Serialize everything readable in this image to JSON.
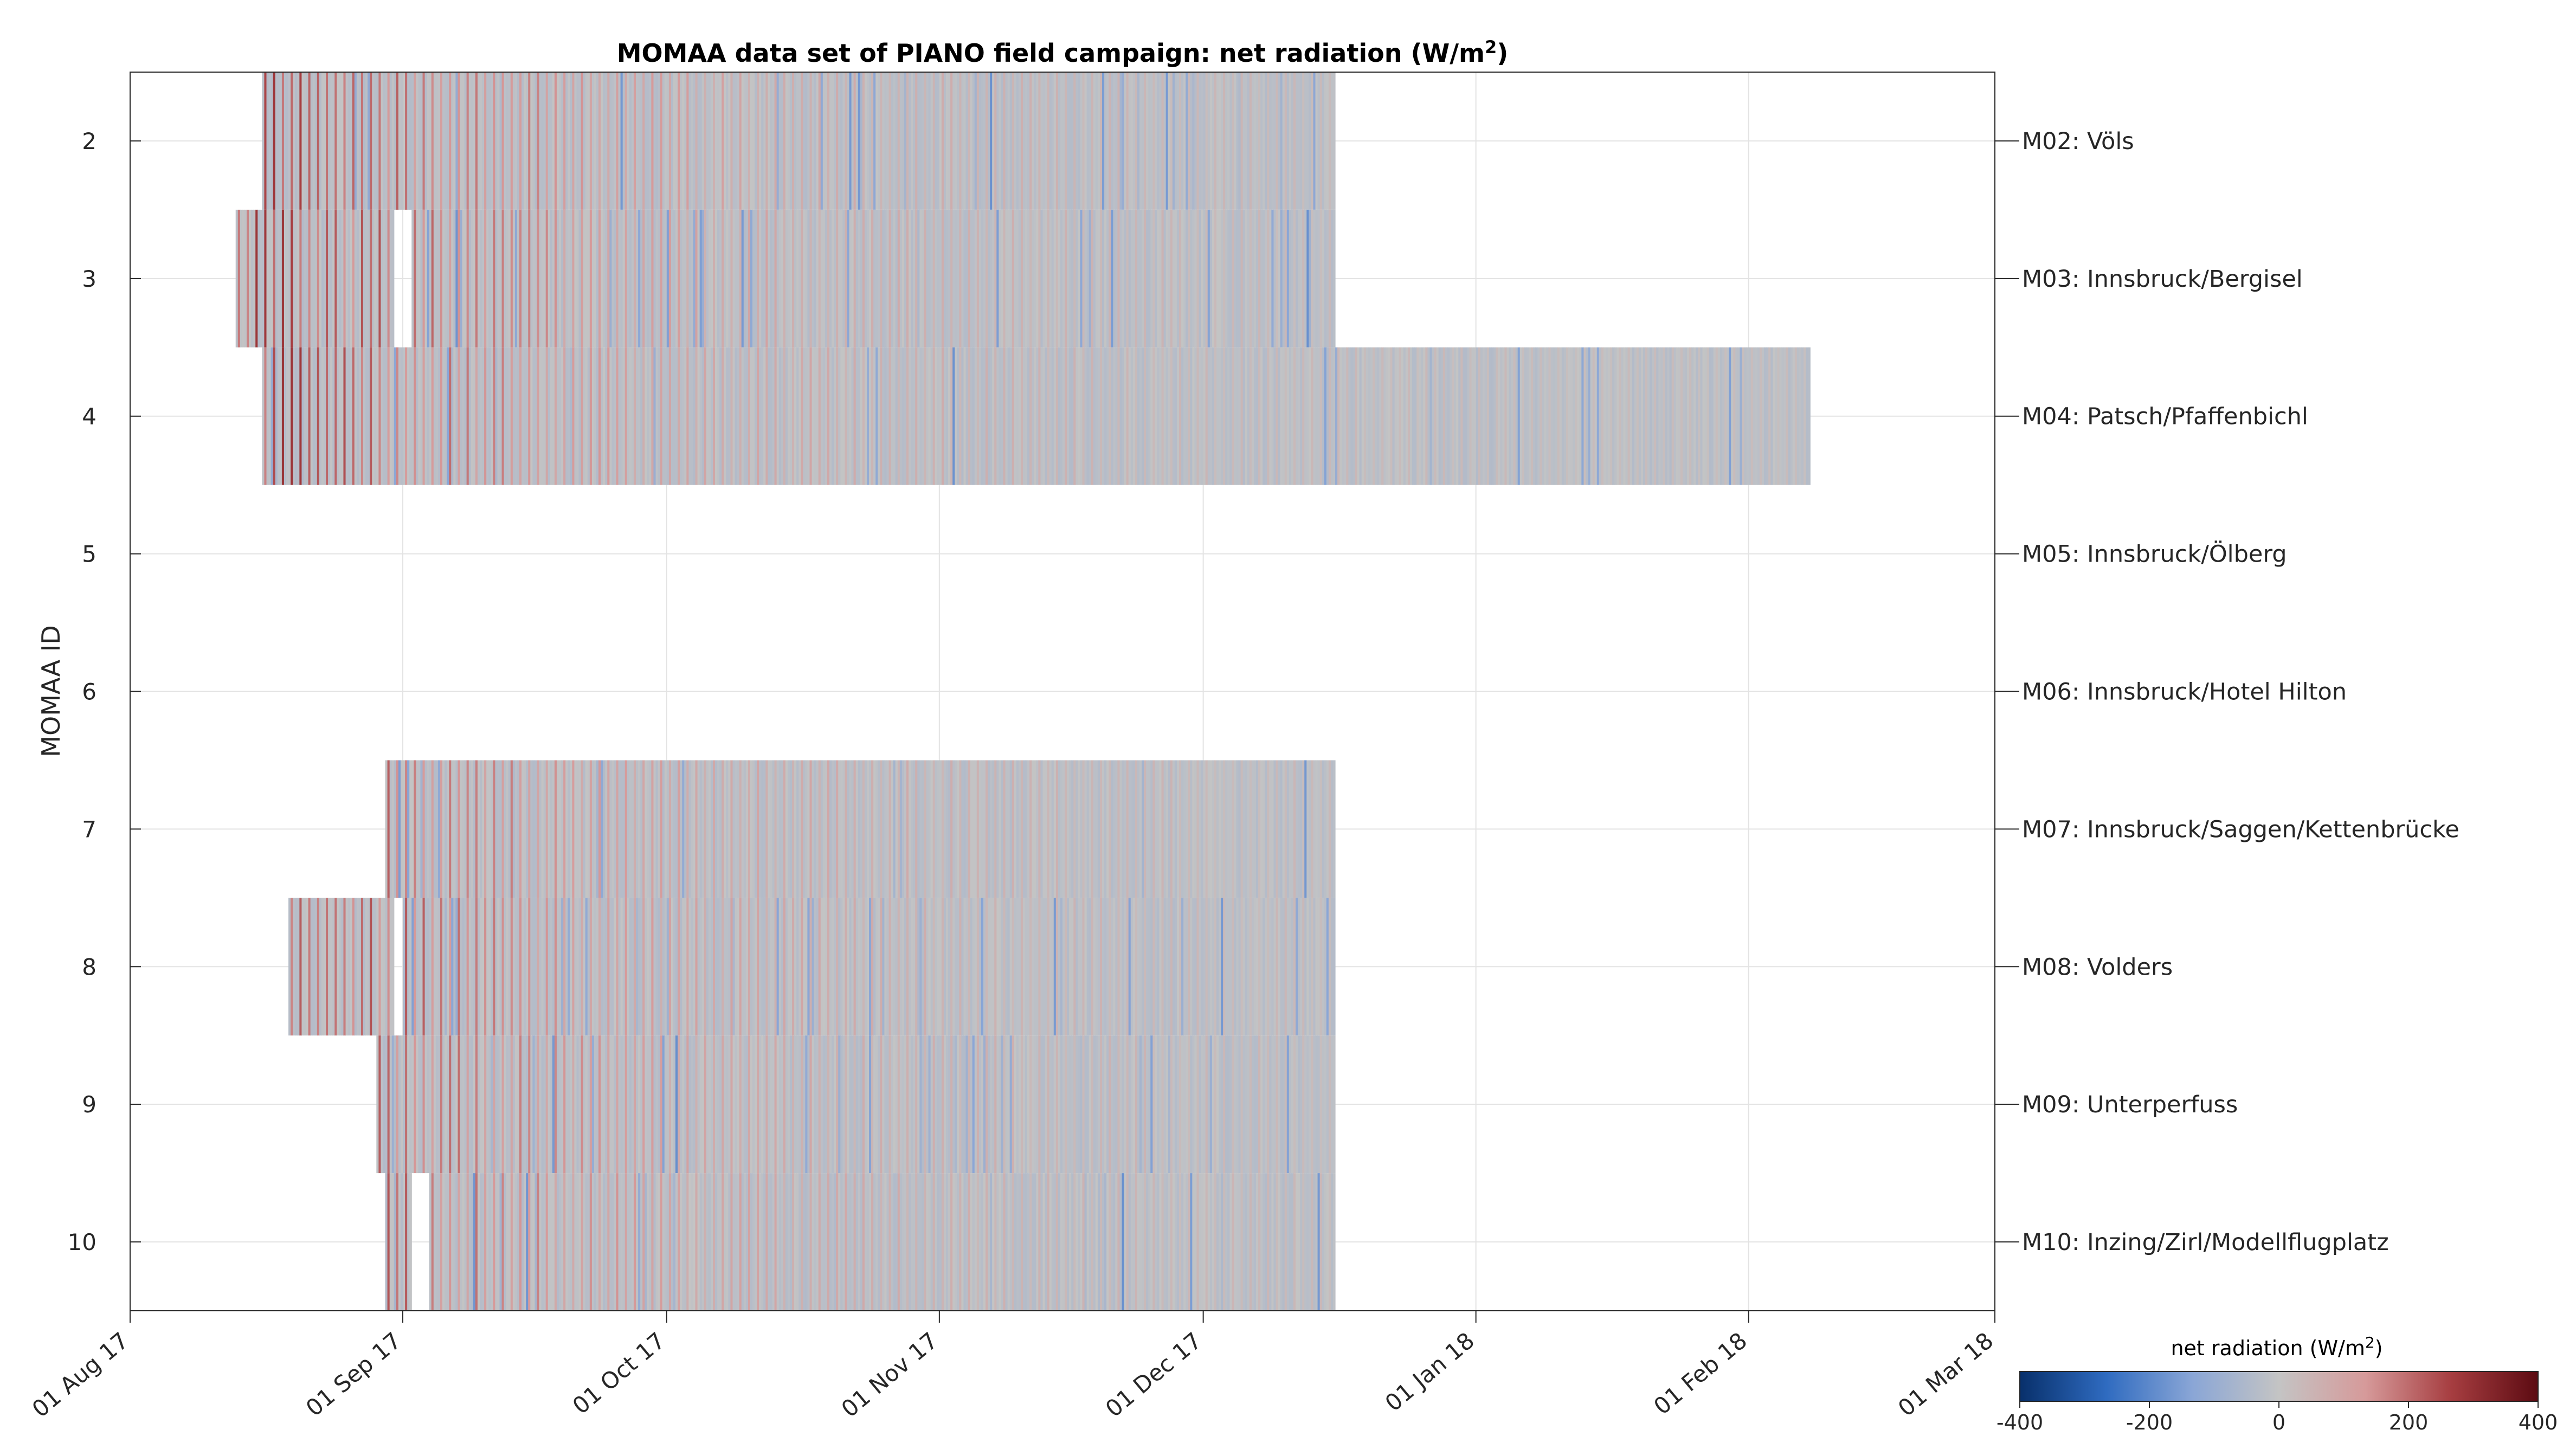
{
  "chart_data": {
    "type": "heatmap",
    "title": "MOMAA data set of PIANO field campaign: net radiation (W/m",
    "title_superscript": "2",
    "title_suffix": ")",
    "ylabel": "MOMAA ID",
    "x_axis": {
      "type": "date",
      "range": [
        "2017-08-01",
        "2018-03-01"
      ],
      "tick_labels": [
        "01 Aug 17",
        "01 Sep 17",
        "01 Oct 17",
        "01 Nov 17",
        "01 Dec 17",
        "01 Jan 18",
        "01 Feb 18",
        "01 Mar 18"
      ],
      "tick_dates": [
        "2017-08-01",
        "2017-09-01",
        "2017-10-01",
        "2017-11-01",
        "2017-12-01",
        "2018-01-01",
        "2018-02-01",
        "2018-03-01"
      ]
    },
    "y_axis": {
      "range": [
        1.5,
        10.5
      ],
      "reversed": true,
      "ticks": [
        2,
        3,
        4,
        5,
        6,
        7,
        8,
        9,
        10
      ]
    },
    "grid": true,
    "stations": [
      {
        "id": 2,
        "label": "M02: Völs",
        "segments": [
          [
            "2017-08-16",
            "2017-12-16"
          ]
        ]
      },
      {
        "id": 3,
        "label": "M03: Innsbruck/Bergisel",
        "segments": [
          [
            "2017-08-13",
            "2017-08-31"
          ],
          [
            "2017-09-02",
            "2017-12-16"
          ]
        ]
      },
      {
        "id": 4,
        "label": "M04: Patsch/Pfaffenbichl",
        "segments": [
          [
            "2017-08-16",
            "2018-02-08"
          ]
        ]
      },
      {
        "id": 5,
        "label": "M05: Innsbruck/Ölberg",
        "segments": []
      },
      {
        "id": 6,
        "label": "M06: Innsbruck/Hotel Hilton",
        "segments": []
      },
      {
        "id": 7,
        "label": "M07: Innsbruck/Saggen/Kettenbrücke",
        "segments": [
          [
            "2017-08-30",
            "2017-12-16"
          ]
        ]
      },
      {
        "id": 8,
        "label": "M08: Volders",
        "segments": [
          [
            "2017-08-19",
            "2017-08-31"
          ],
          [
            "2017-09-01",
            "2017-12-16"
          ]
        ]
      },
      {
        "id": 9,
        "label": "M09: Unterperfuss",
        "segments": [
          [
            "2017-08-29",
            "2017-12-16"
          ]
        ]
      },
      {
        "id": 10,
        "label": "M10: Inzing/Zirl/Modellflugplatz",
        "segments": [
          [
            "2017-08-30",
            "2017-09-02"
          ],
          [
            "2017-09-04",
            "2017-12-16"
          ]
        ]
      }
    ],
    "values_note": "daily day/night alternation of net radiation; values high (~+400) in Aug/Sep, decreasing toward ~0 to slightly negative in Nov–Feb",
    "colorbar": {
      "title": "net radiation (W/m",
      "title_superscript": "2",
      "title_suffix": ")",
      "range": [
        -400,
        400
      ],
      "tick_labels": [
        "-400",
        "-200",
        "0",
        "200",
        "400"
      ],
      "tick_values": [
        -400,
        -200,
        0,
        200,
        400
      ],
      "colors": [
        "#08306b",
        "#2f6bc0",
        "#8aa6d6",
        "#c4c4c4",
        "#d69a9a",
        "#a63d40",
        "#5c0b12"
      ]
    }
  }
}
